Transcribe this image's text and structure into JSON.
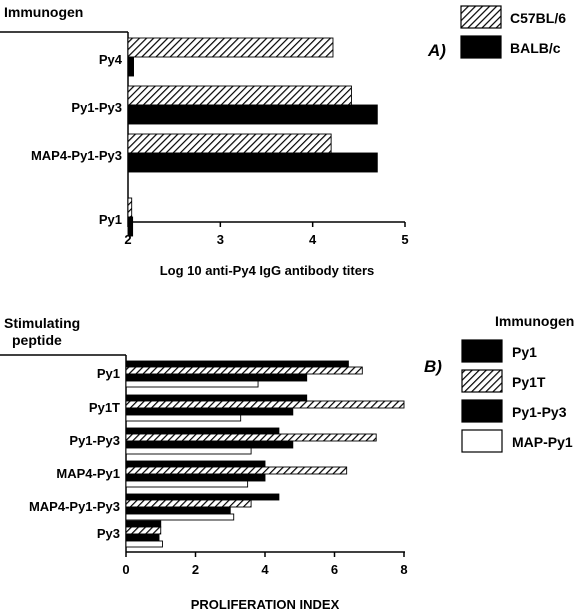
{
  "chart_data": [
    {
      "type": "bar",
      "orientation": "horizontal",
      "panel_label": "A)",
      "category_header": "Immunogen",
      "categories": [
        "Py4",
        "Py1-Py3",
        "MAP4-Py1-Py3",
        "Py1"
      ],
      "series": [
        {
          "name": "C57BL/6",
          "pattern": "hatched",
          "values": [
            4.22,
            4.42,
            4.2,
            2.04
          ]
        },
        {
          "name": "BALB/c",
          "pattern": "solid",
          "values": [
            2.06,
            4.7,
            4.7,
            2.05
          ]
        }
      ],
      "xlabel": "Log 10 anti-Py4 IgG antibody titers",
      "xlim": [
        2,
        5
      ],
      "xticks": [
        "2",
        "3",
        "4",
        "5"
      ],
      "legend_position": "top-right"
    },
    {
      "type": "bar",
      "orientation": "horizontal",
      "panel_label": "B)",
      "category_header": [
        "Stimulating",
        "peptide"
      ],
      "legend_title": "Immunogen",
      "categories": [
        "Py1",
        "Py1T",
        "Py1-Py3",
        "MAP4-Py1",
        "MAP4-Py1-Py3",
        "Py3"
      ],
      "series": [
        {
          "name": "Py1",
          "pattern": "solid",
          "values": [
            6.4,
            5.2,
            4.4,
            4.0,
            4.4,
            1.0
          ]
        },
        {
          "name": "Py1T",
          "pattern": "hatched",
          "values": [
            6.8,
            8.0,
            7.2,
            6.35,
            3.6,
            1.0
          ]
        },
        {
          "name": "Py1-Py3",
          "pattern": "solid",
          "values": [
            5.2,
            4.8,
            4.8,
            4.0,
            3.0,
            0.95
          ]
        },
        {
          "name": "MAP-Py1",
          "pattern": "open",
          "values": [
            3.8,
            3.3,
            3.6,
            3.5,
            3.1,
            1.05
          ]
        }
      ],
      "xlabel": "PROLIFERATION INDEX",
      "xlim": [
        0,
        8
      ],
      "xticks": [
        "0",
        "2",
        "4",
        "6",
        "8"
      ],
      "legend_position": "right"
    }
  ]
}
